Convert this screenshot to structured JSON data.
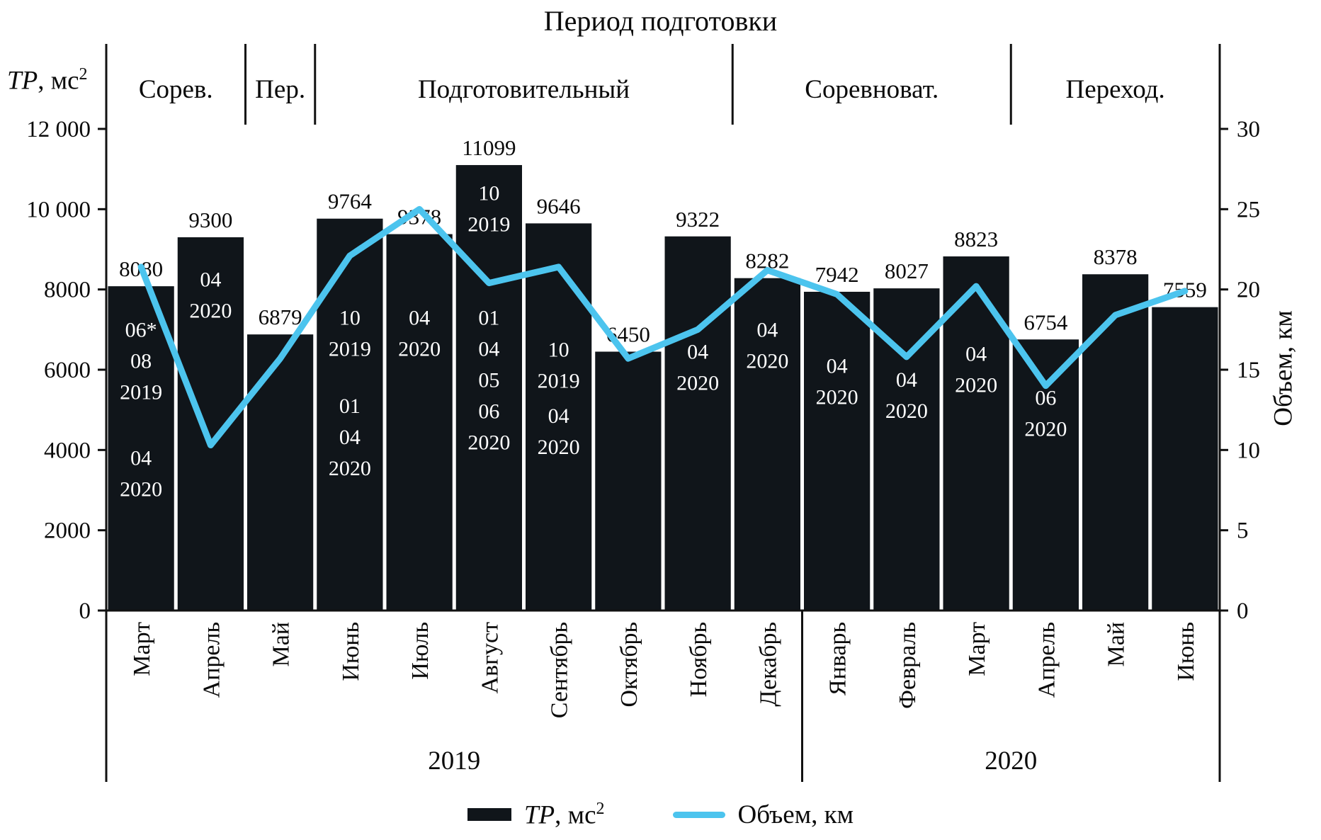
{
  "chart_data": {
    "type": "bar",
    "title": "Период подготовки",
    "categories": [
      "Март",
      "Апрель",
      "Май",
      "Июнь",
      "Июль",
      "Август",
      "Сентябрь",
      "Октябрь",
      "Ноябрь",
      "Декабрь",
      "Январь",
      "Февраль",
      "Март",
      "Апрель",
      "Май",
      "Июнь"
    ],
    "series": [
      {
        "name": "ТР, мс²",
        "type": "bar",
        "axis": "left",
        "color": "#10151a",
        "values": [
          8080,
          9300,
          6879,
          9764,
          9378,
          11099,
          9646,
          6450,
          9322,
          8282,
          7942,
          8027,
          8823,
          6754,
          8378,
          7559
        ]
      },
      {
        "name": "Объем, км",
        "type": "line",
        "axis": "right",
        "color": "#4cc4ee",
        "values": [
          21.4,
          10.3,
          15.7,
          22.1,
          25.0,
          20.4,
          21.4,
          15.7,
          17.5,
          21.2,
          19.7,
          15.8,
          20.2,
          14.0,
          18.4,
          19.9
        ]
      }
    ],
    "left_axis": {
      "label_main": "ТР",
      "label_rest": ", мс",
      "label_sup": "2",
      "min": 0,
      "max": 12000,
      "ticks": [
        0,
        2000,
        4000,
        6000,
        8000,
        10000,
        12000
      ],
      "tick_labels": [
        "0",
        "2000",
        "4000",
        "6000",
        "8000",
        "10 000",
        "12 000"
      ]
    },
    "right_axis": {
      "label": "Объем, км",
      "min": 0,
      "max": 30,
      "ticks": [
        0,
        5,
        10,
        15,
        20,
        25,
        30
      ]
    },
    "periods": [
      {
        "label": "Сорев.",
        "start": 0,
        "end": 2
      },
      {
        "label": "Пер.",
        "start": 2,
        "end": 3
      },
      {
        "label": "Подготовительный",
        "start": 3,
        "end": 9
      },
      {
        "label": "Соревноват.",
        "start": 9,
        "end": 13
      },
      {
        "label": "Переход.",
        "start": 13,
        "end": 16
      }
    ],
    "year_groups": [
      {
        "label": "2019",
        "start": 0,
        "end": 10
      },
      {
        "label": "2020",
        "start": 10,
        "end": 16
      }
    ],
    "bar_annotations": [
      {
        "index": 0,
        "blocks": [
          {
            "top_value": 7000,
            "lines": [
              "06*",
              "08",
              "2019"
            ]
          },
          {
            "top_value": 3800,
            "lines": [
              "04",
              "2020"
            ]
          }
        ]
      },
      {
        "index": 1,
        "blocks": [
          {
            "top_value": 8250,
            "lines": [
              "04",
              "2020"
            ]
          }
        ]
      },
      {
        "index": 3,
        "blocks": [
          {
            "top_value": 7300,
            "lines": [
              "10",
              "2019"
            ]
          },
          {
            "top_value": 5100,
            "lines": [
              "01",
              "04",
              "2020"
            ]
          }
        ]
      },
      {
        "index": 4,
        "blocks": [
          {
            "top_value": 7300,
            "lines": [
              "04",
              "2020"
            ]
          }
        ]
      },
      {
        "index": 5,
        "blocks": [
          {
            "top_value": 10400,
            "lines": [
              "10",
              "2019"
            ]
          },
          {
            "top_value": 7300,
            "lines": [
              "01",
              "04",
              "05",
              "06",
              "2020"
            ]
          }
        ]
      },
      {
        "index": 6,
        "blocks": [
          {
            "top_value": 6500,
            "lines": [
              "10",
              "2019"
            ]
          },
          {
            "top_value": 4850,
            "lines": [
              "04",
              "2020"
            ]
          }
        ]
      },
      {
        "index": 8,
        "blocks": [
          {
            "top_value": 6450,
            "lines": [
              "04",
              "2020"
            ]
          }
        ]
      },
      {
        "index": 9,
        "blocks": [
          {
            "top_value": 7000,
            "lines": [
              "04",
              "2020"
            ]
          }
        ]
      },
      {
        "index": 10,
        "blocks": [
          {
            "top_value": 6100,
            "lines": [
              "04",
              "2020"
            ]
          }
        ]
      },
      {
        "index": 11,
        "blocks": [
          {
            "top_value": 5750,
            "lines": [
              "04",
              "2020"
            ]
          }
        ]
      },
      {
        "index": 12,
        "blocks": [
          {
            "top_value": 6400,
            "lines": [
              "04",
              "2020"
            ]
          }
        ]
      },
      {
        "index": 13,
        "blocks": [
          {
            "top_value": 5300,
            "lines": [
              "06",
              "2020"
            ]
          }
        ]
      }
    ],
    "legend": [
      {
        "main": "ТР",
        "rest": ", мс",
        "sup": "2"
      },
      {
        "label": "Объем, км"
      }
    ]
  }
}
